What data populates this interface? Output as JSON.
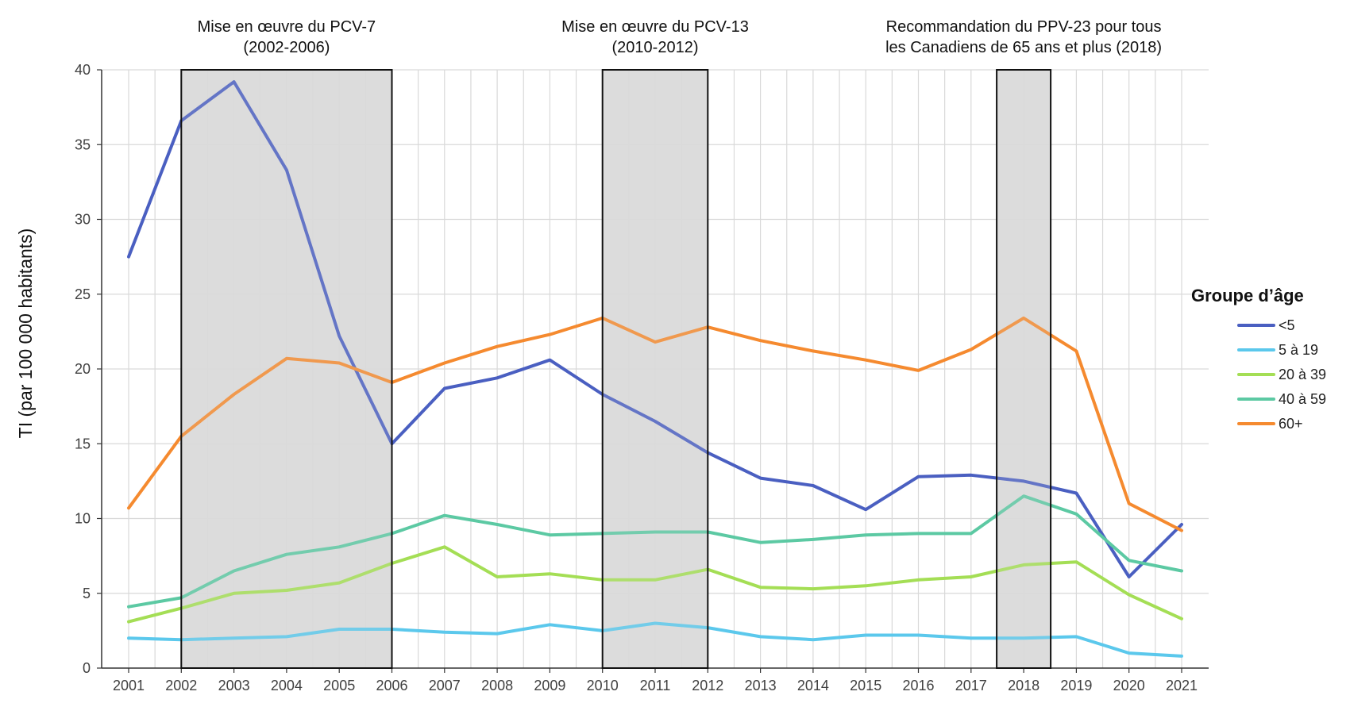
{
  "chart_data": {
    "type": "line",
    "title": "",
    "xlabel": "",
    "ylabel": "TI (par 100 000 habitants)",
    "ylim": [
      0,
      40
    ],
    "yticks": [
      0,
      5,
      10,
      15,
      20,
      25,
      30,
      35,
      40
    ],
    "grid": true,
    "legend_position": "right",
    "legend_title": "Groupe d’âge",
    "x": [
      "2001",
      "2002",
      "2003",
      "2004",
      "2005",
      "2006",
      "2007",
      "2008",
      "2009",
      "2010",
      "2011",
      "2012",
      "2013",
      "2014",
      "2015",
      "2016",
      "2017",
      "2018",
      "2019",
      "2020",
      "2021"
    ],
    "series": [
      {
        "name": "<5",
        "color": "#4A5FC1",
        "values": [
          27.5,
          36.6,
          39.2,
          33.3,
          22.2,
          15.0,
          18.7,
          19.4,
          20.6,
          18.3,
          16.5,
          14.4,
          12.7,
          12.2,
          10.6,
          12.8,
          12.9,
          12.5,
          11.7,
          6.1,
          9.6
        ]
      },
      {
        "name": "5 à 19",
        "color": "#5BC8EC",
        "values": [
          2.0,
          1.9,
          2.0,
          2.1,
          2.6,
          2.6,
          2.4,
          2.3,
          2.9,
          2.5,
          3.0,
          2.7,
          2.1,
          1.9,
          2.2,
          2.2,
          2.0,
          2.0,
          2.1,
          1.0,
          0.8
        ]
      },
      {
        "name": "20 à 39",
        "color": "#A4DE55",
        "values": [
          3.1,
          4.0,
          5.0,
          5.2,
          5.7,
          7.0,
          8.1,
          6.1,
          6.3,
          5.9,
          5.9,
          6.6,
          5.4,
          5.3,
          5.5,
          5.9,
          6.1,
          6.9,
          7.1,
          4.9,
          3.3
        ]
      },
      {
        "name": "40 à 59",
        "color": "#5CC9A3",
        "values": [
          4.1,
          4.7,
          6.5,
          7.6,
          8.1,
          9.0,
          10.2,
          9.6,
          8.9,
          9.0,
          9.1,
          9.1,
          8.4,
          8.6,
          8.9,
          9.0,
          9.0,
          11.5,
          10.3,
          7.2,
          6.5
        ]
      },
      {
        "name": "60+",
        "color": "#F58A2F",
        "values": [
          10.7,
          15.5,
          18.3,
          20.7,
          20.4,
          19.1,
          20.4,
          21.5,
          22.3,
          23.4,
          21.8,
          22.8,
          21.9,
          21.2,
          20.6,
          19.9,
          21.3,
          23.4,
          21.2,
          11.0,
          9.2
        ]
      }
    ],
    "shaded_periods": [
      {
        "from": "2002",
        "to": "2006",
        "label_line1": "Mise en œuvre du PCV-7",
        "label_line2": "(2002-2006)"
      },
      {
        "from": "2010",
        "to": "2012",
        "label_line1": "Mise en œuvre du PCV-13",
        "label_line2": "(2010-2012)"
      },
      {
        "from": "2018",
        "to": "2018",
        "label_line1": "Recommandation du PPV-23 pour tous",
        "label_line2": "les Canadiens de 65 ans et plus (2018)"
      }
    ]
  }
}
